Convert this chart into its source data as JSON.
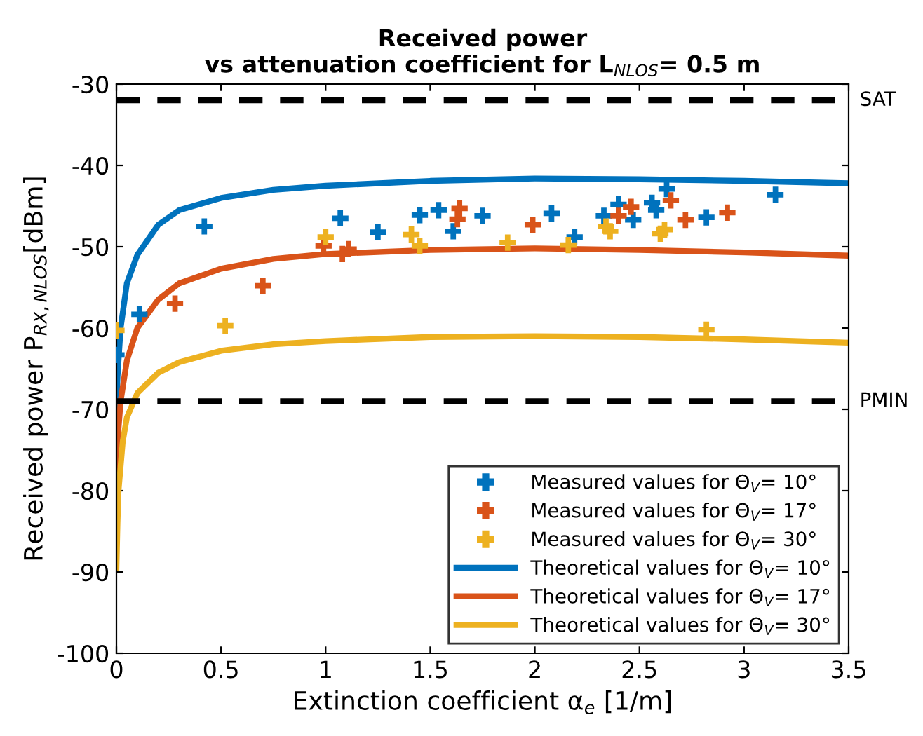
{
  "chart_data": {
    "type": "scatter",
    "title": "Received power\nvs attenuation coefficient for L$_{NLOS}$= 0.5 m",
    "xlabel": "Extinction coefficient α$_{e}$ [1/m]",
    "ylabel": "Received power P$_{RX,NLOS}$[dBm]",
    "xlim": [
      0,
      3.5
    ],
    "xticks": [
      0,
      0.5,
      1,
      1.5,
      2,
      2.5,
      3,
      3.5
    ],
    "ylim": [
      -100,
      -30
    ],
    "yticks": [
      -100,
      -90,
      -80,
      -70,
      -60,
      -50,
      -40,
      -30
    ],
    "grid": false,
    "legend": "bottom right",
    "series": [
      {
        "name": "Measured values for Θ$_{V}$= 10°",
        "marker": "cross",
        "color": "#0072bd",
        "x": [
          0.0,
          0.11,
          0.42,
          1.07,
          1.25,
          1.45,
          1.54,
          1.61,
          1.75,
          2.08,
          2.19,
          2.33,
          2.4,
          2.47,
          2.56,
          2.58,
          2.63,
          2.82,
          3.15
        ],
        "values": [
          -63.3,
          -58.3,
          -47.5,
          -46.5,
          -48.2,
          -46.1,
          -45.5,
          -48.1,
          -46.2,
          -45.9,
          -48.8,
          -46.2,
          -44.8,
          -46.7,
          -44.6,
          -45.5,
          -42.9,
          -46.4,
          -43.6
        ]
      },
      {
        "name": "Measured values for Θ$_{V}$= 17°",
        "marker": "cross",
        "color": "#d95319",
        "x": [
          0.28,
          0.7,
          0.99,
          1.08,
          1.11,
          1.63,
          1.64,
          1.99,
          2.4,
          2.46,
          2.65,
          2.72,
          2.92
        ],
        "values": [
          -57.0,
          -54.8,
          -49.9,
          -50.9,
          -50.3,
          -46.6,
          -45.3,
          -47.3,
          -46.2,
          -45.1,
          -44.3,
          -46.7,
          -45.8
        ]
      },
      {
        "name": "Measured values for Θ$_{V}$= 30°",
        "marker": "cross",
        "color": "#edb120",
        "x": [
          0.0,
          0.52,
          1.0,
          1.41,
          1.45,
          1.87,
          2.16,
          2.34,
          2.36,
          2.6,
          2.62,
          2.82
        ],
        "values": [
          -60.3,
          -59.7,
          -48.8,
          -48.5,
          -49.9,
          -49.5,
          -49.8,
          -47.5,
          -48.1,
          -48.4,
          -47.9,
          -60.2
        ]
      },
      {
        "name": "Theoretical values for Θ$_{V}$= 10°",
        "type": "line",
        "color": "#0072bd",
        "x": [
          0.0,
          0.005,
          0.02,
          0.05,
          0.1,
          0.2,
          0.3,
          0.5,
          0.75,
          1.0,
          1.5,
          2.0,
          2.5,
          3.0,
          3.5
        ],
        "values": [
          -70,
          -66,
          -60,
          -54.5,
          -51,
          -47.3,
          -45.5,
          -44,
          -43,
          -42.5,
          -41.9,
          -41.6,
          -41.7,
          -41.9,
          -42.2
        ]
      },
      {
        "name": "Theoretical values for Θ$_{V}$= 17°",
        "type": "line",
        "color": "#d95319",
        "x": [
          0.0,
          0.005,
          0.02,
          0.05,
          0.1,
          0.2,
          0.3,
          0.5,
          0.75,
          1.0,
          1.5,
          2.0,
          2.5,
          3.0,
          3.5
        ],
        "values": [
          -79,
          -74,
          -69,
          -64,
          -60,
          -56.5,
          -54.5,
          -52.7,
          -51.5,
          -50.9,
          -50.4,
          -50.2,
          -50.4,
          -50.7,
          -51.1
        ]
      },
      {
        "name": "Theoretical values for Θ$_{V}$= 30°",
        "type": "line",
        "color": "#edb120",
        "x": [
          0.0,
          0.005,
          0.01,
          0.03,
          0.05,
          0.1,
          0.2,
          0.3,
          0.5,
          0.75,
          1.0,
          1.5,
          2.0,
          2.5,
          3.0,
          3.5
        ],
        "values": [
          -89.5,
          -84,
          -80,
          -74,
          -71,
          -68,
          -65.5,
          -64.2,
          -62.8,
          -62,
          -61.6,
          -61.1,
          -61.0,
          -61.1,
          -61.4,
          -61.8
        ]
      }
    ],
    "ref_lines": [
      {
        "axis": "y",
        "value": -32,
        "label": "SAT",
        "color": "#000000",
        "line_style": "dashed"
      },
      {
        "axis": "y",
        "value": -69,
        "label": "PMIN",
        "color": "#000000",
        "line_style": "dashed"
      }
    ]
  }
}
